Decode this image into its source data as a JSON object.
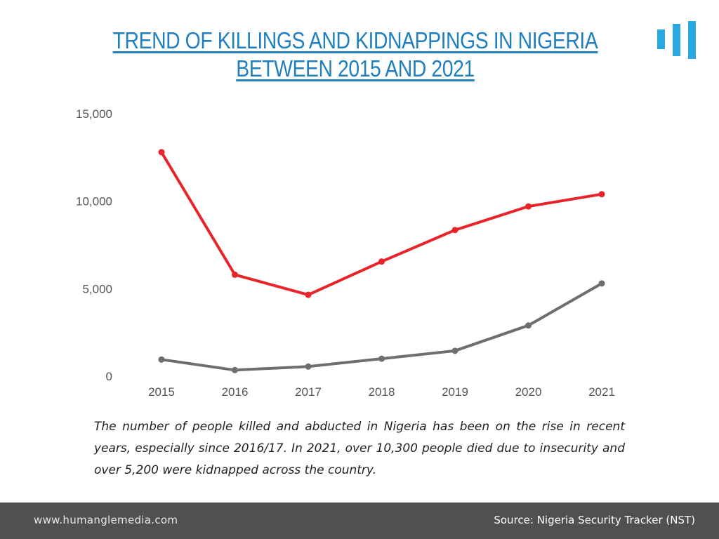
{
  "header": {
    "title": "TREND OF KILLINGS AND KIDNAPPINGS IN NIGERIA BETWEEN 2015 AND 2021",
    "logo_icon": "bar-chart-logo-icon"
  },
  "chart_data": {
    "type": "line",
    "title": "",
    "xlabel": "",
    "ylabel": "",
    "x": [
      "2015",
      "2016",
      "2017",
      "2018",
      "2019",
      "2020",
      "2021"
    ],
    "ylim": [
      0,
      15000
    ],
    "y_ticks": [
      0,
      5000,
      10000,
      15000
    ],
    "y_tick_labels": [
      "0",
      "5,000",
      "10,000",
      "15,000"
    ],
    "grid": false,
    "legend": "none",
    "series": [
      {
        "color": "#e8242a",
        "values": [
          12800,
          5800,
          4650,
          6550,
          8350,
          9700,
          10400
        ]
      },
      {
        "color": "#6e6e6e",
        "values": [
          950,
          350,
          550,
          1000,
          1450,
          2900,
          5300
        ]
      }
    ]
  },
  "caption": "The number of people killed and abducted in Nigeria has been on the rise in recent years, especially since 2016/17. In 2021, over 10,300 people died due to insecurity and over 5,200 were kidnapped across the country.",
  "footer": {
    "website": "www.humanglemedia.com",
    "source": "Source: Nigeria Security Tracker (NST)",
    "background": "#505050"
  },
  "colors": {
    "title": "#1f7fbf",
    "logo": "#29a9e0"
  }
}
